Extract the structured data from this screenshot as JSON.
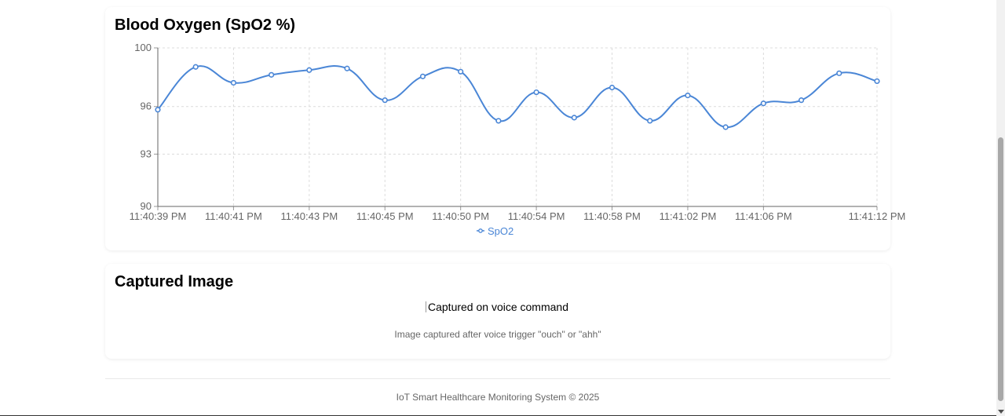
{
  "chart_card": {
    "title": "Blood Oxygen (SpO2 %)"
  },
  "chart_data": {
    "type": "line",
    "title": "Blood Oxygen (SpO2 %)",
    "ylim": [
      90,
      100
    ],
    "y_ticks": [
      "100",
      "96",
      "93",
      "90"
    ],
    "y_tick_values": [
      100,
      96.3,
      93.3,
      90
    ],
    "x_tick_labels": [
      {
        "index": 0,
        "label": "11:40:39 PM"
      },
      {
        "index": 2,
        "label": "11:40:41 PM"
      },
      {
        "index": 4,
        "label": "11:40:43 PM"
      },
      {
        "index": 6,
        "label": "11:40:45 PM"
      },
      {
        "index": 8,
        "label": "11:40:50 PM"
      },
      {
        "index": 10,
        "label": "11:40:54 PM"
      },
      {
        "index": 12,
        "label": "11:40:58 PM"
      },
      {
        "index": 14,
        "label": "11:41:02 PM"
      },
      {
        "index": 16,
        "label": "11:41:06 PM"
      },
      {
        "index": 19,
        "label": "11:41:12 PM"
      }
    ],
    "grid": true,
    "legend_position": "bottom",
    "series": [
      {
        "name": "SpO2",
        "color": "#4a86d6",
        "values": [
          96.1,
          98.8,
          97.8,
          98.3,
          98.6,
          98.7,
          96.7,
          98.2,
          98.5,
          95.4,
          97.2,
          95.6,
          97.5,
          95.4,
          97.0,
          95.0,
          96.5,
          96.7,
          98.4,
          97.9
        ]
      }
    ]
  },
  "image_card": {
    "title": "Captured Image",
    "image_alt": "Captured on voice command",
    "caption": "Image captured after voice trigger \"ouch\" or \"ahh\""
  },
  "footer": {
    "text": "IoT Smart Healthcare Monitoring System © 2025"
  }
}
